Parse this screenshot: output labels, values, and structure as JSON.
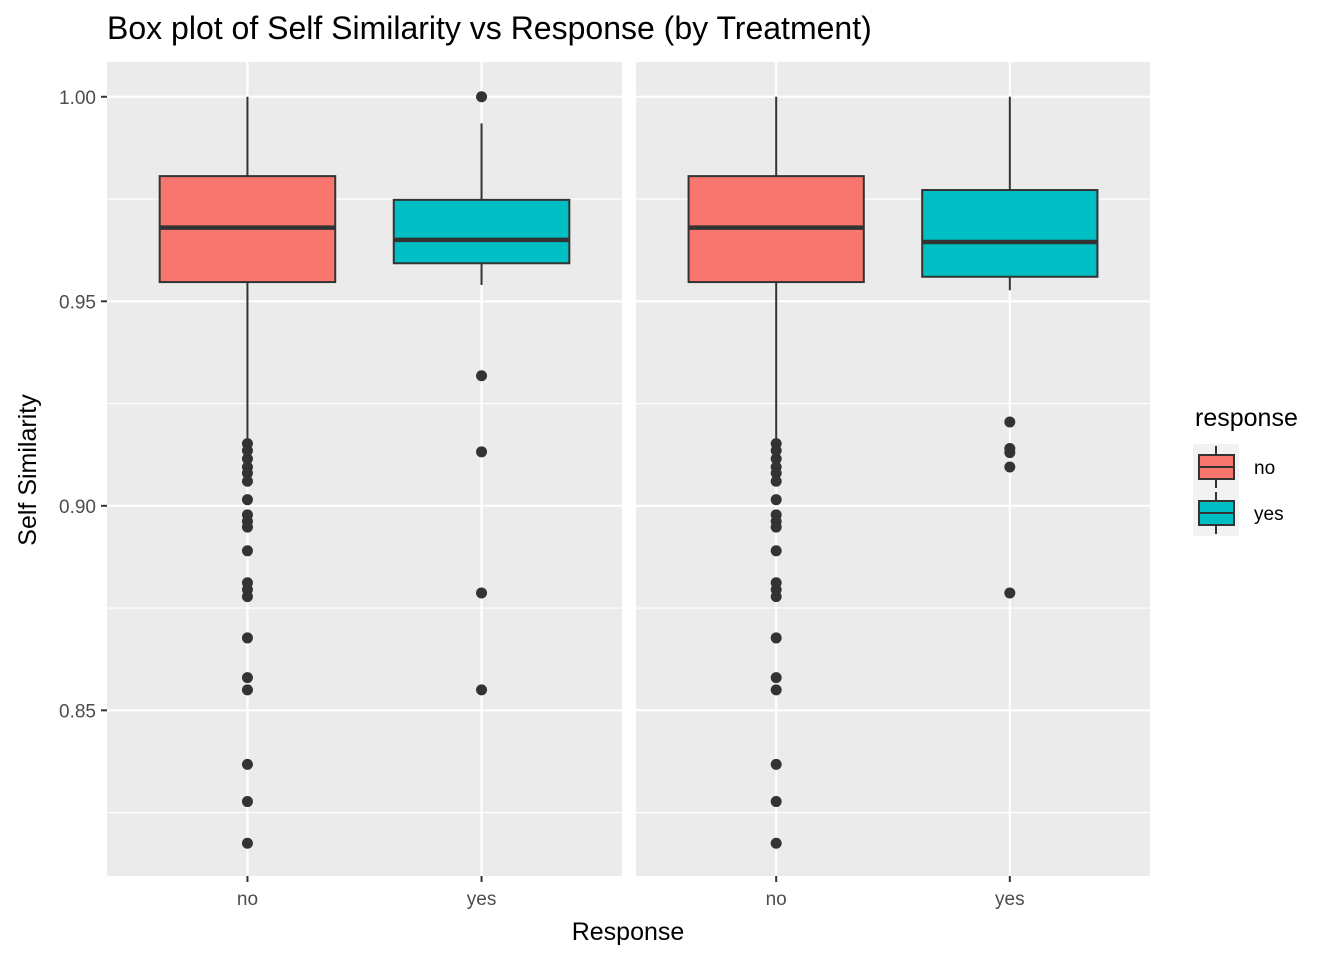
{
  "chart_data": {
    "type": "box",
    "title": "Box plot of Self Similarity vs Response (by Treatment)",
    "xlabel": "Response",
    "ylabel": "Self Similarity",
    "categories": [
      "no",
      "yes"
    ],
    "y_ticks": [
      "0.85",
      "0.90",
      "0.95",
      "1.00"
    ],
    "ylim": [
      0.8095,
      1.0085
    ],
    "legend": {
      "title": "response",
      "position": "right",
      "entries": [
        "no",
        "yes"
      ]
    },
    "colors": {
      "no": "#F8766D",
      "yes": "#00BFC4",
      "panel_bg": "#EBEBEB",
      "grid": "#FFFFFF",
      "box_line": "#333333"
    },
    "facets": [
      {
        "boxes": [
          {
            "category": "no",
            "whisker_low": 0.9165,
            "q1": 0.9547,
            "median": 0.968,
            "q3": 0.9806,
            "whisker_high": 1.0,
            "outliers": [
              0.9152,
              0.9135,
              0.9115,
              0.9095,
              0.908,
              0.906,
              0.9015,
              0.8978,
              0.8962,
              0.8948,
              0.889,
              0.8812,
              0.8795,
              0.8778,
              0.8677,
              0.858,
              0.855,
              0.8368,
              0.8277,
              0.8175
            ]
          },
          {
            "category": "yes",
            "whisker_low": 0.954,
            "q1": 0.9593,
            "median": 0.965,
            "q3": 0.9748,
            "whisker_high": 0.9935,
            "outliers": [
              1.0,
              0.9318,
              0.9132,
              0.8787,
              0.855
            ]
          }
        ]
      },
      {
        "boxes": [
          {
            "category": "no",
            "whisker_low": 0.9165,
            "q1": 0.9547,
            "median": 0.968,
            "q3": 0.9806,
            "whisker_high": 1.0,
            "outliers": [
              0.9152,
              0.9135,
              0.9115,
              0.9095,
              0.908,
              0.906,
              0.9015,
              0.8978,
              0.8962,
              0.8948,
              0.889,
              0.8812,
              0.8795,
              0.8778,
              0.8677,
              0.858,
              0.855,
              0.8368,
              0.8277,
              0.8175
            ]
          },
          {
            "category": "yes",
            "whisker_low": 0.9527,
            "q1": 0.956,
            "median": 0.9645,
            "q3": 0.9772,
            "whisker_high": 1.0,
            "outliers": [
              0.9205,
              0.914,
              0.913,
              0.9095,
              0.8787
            ]
          }
        ]
      }
    ]
  }
}
